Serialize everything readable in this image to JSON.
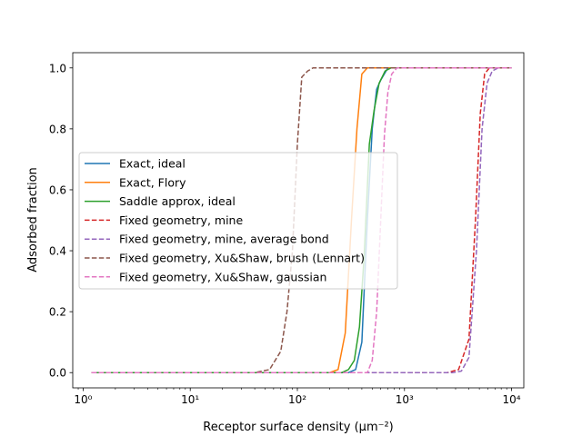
{
  "chart_data": {
    "type": "line",
    "xlabel": "Receptor surface density (μm⁻²)",
    "ylabel": "Adsorbed fraction",
    "xscale": "log",
    "xlim": [
      0.8,
      13000
    ],
    "ylim": [
      -0.05,
      1.05
    ],
    "xticks": [
      {
        "value": 1,
        "label": "10⁰"
      },
      {
        "value": 10,
        "label": "10¹"
      },
      {
        "value": 100,
        "label": "10²"
      },
      {
        "value": 1000,
        "label": "10³"
      },
      {
        "value": 10000,
        "label": "10⁴"
      }
    ],
    "yticks": [
      {
        "value": 0.0,
        "label": "0.0"
      },
      {
        "value": 0.2,
        "label": "0.2"
      },
      {
        "value": 0.4,
        "label": "0.4"
      },
      {
        "value": 0.6,
        "label": "0.6"
      },
      {
        "value": 0.8,
        "label": "0.8"
      },
      {
        "value": 1.0,
        "label": "1.0"
      }
    ],
    "legend_position": "center-left",
    "grid": false,
    "series": [
      {
        "name": "Exact, ideal",
        "color": "#1f77b4",
        "dash": "solid",
        "x": [
          1.2,
          100,
          300,
          350,
          400,
          450,
          500,
          550,
          600,
          700,
          10000
        ],
        "y": [
          0,
          0,
          0,
          0.01,
          0.1,
          0.5,
          0.8,
          0.93,
          0.96,
          1.0,
          1.0
        ]
      },
      {
        "name": "Exact, Flory",
        "color": "#ff7f0e",
        "dash": "solid",
        "x": [
          1.2,
          100,
          200,
          240,
          280,
          320,
          360,
          400,
          450,
          550,
          10000
        ],
        "y": [
          0,
          0,
          0,
          0.01,
          0.13,
          0.5,
          0.8,
          0.98,
          1.0,
          1.0,
          1.0
        ]
      },
      {
        "name": "Saddle approx, ideal",
        "color": "#2ca02c",
        "dash": "solid",
        "x": [
          1.2,
          100,
          260,
          300,
          340,
          380,
          420,
          470,
          520,
          580,
          660,
          750,
          10000
        ],
        "y": [
          0,
          0,
          0,
          0.01,
          0.04,
          0.15,
          0.38,
          0.75,
          0.86,
          0.95,
          0.99,
          1.0,
          1.0
        ]
      },
      {
        "name": "Fixed geometry, mine",
        "color": "#d62728",
        "dash": "dashed",
        "x": [
          1.2,
          1000,
          2500,
          3200,
          4000,
          4600,
          5100,
          5600,
          6200,
          7000,
          10000
        ],
        "y": [
          0,
          0,
          0,
          0.01,
          0.11,
          0.5,
          0.85,
          0.98,
          1.0,
          1.0,
          1.0
        ]
      },
      {
        "name": "Fixed geometry, mine, average bond",
        "color": "#9467bd",
        "dash": "dashed",
        "x": [
          1.2,
          1000,
          2800,
          3400,
          4000,
          4700,
          5300,
          5900,
          6600,
          7500,
          10000
        ],
        "y": [
          0,
          0,
          0,
          0.005,
          0.05,
          0.4,
          0.8,
          0.95,
          0.99,
          1.0,
          1.0
        ]
      },
      {
        "name": "Fixed geometry, Xu&Shaw, brush (Lennart)",
        "color": "#8c564b",
        "dash": "dashed",
        "x": [
          1.2,
          40,
          55,
          70,
          80,
          90,
          100,
          110,
          125,
          140,
          160,
          10000
        ],
        "y": [
          0,
          0,
          0.01,
          0.07,
          0.2,
          0.4,
          0.75,
          0.97,
          0.99,
          1.0,
          1.0,
          1.0
        ]
      },
      {
        "name": "Fixed geometry, Xu&Shaw, gaussian",
        "color": "#e377c2",
        "dash": "dashed",
        "x": [
          1.2,
          300,
          450,
          500,
          550,
          600,
          650,
          700,
          760,
          850,
          10000
        ],
        "y": [
          0,
          0,
          0,
          0.04,
          0.2,
          0.5,
          0.78,
          0.92,
          0.98,
          1.0,
          1.0
        ]
      }
    ]
  }
}
